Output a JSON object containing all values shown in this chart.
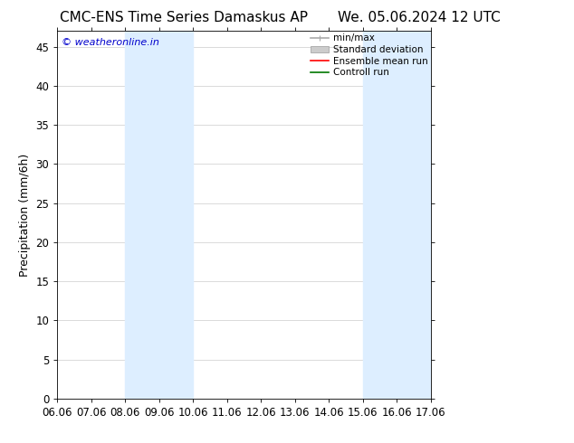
{
  "title_left": "CMC-ENS Time Series Damaskus AP",
  "title_right": "We. 05.06.2024 12 UTC",
  "ylabel": "Precipitation (mm/6h)",
  "watermark": "© weatheronline.in",
  "watermark_color": "#0000cc",
  "xtick_labels": [
    "06.06",
    "07.06",
    "08.06",
    "09.06",
    "10.06",
    "11.06",
    "12.06",
    "13.06",
    "14.06",
    "15.06",
    "16.06",
    "17.06"
  ],
  "xtick_positions": [
    0,
    1,
    2,
    3,
    4,
    5,
    6,
    7,
    8,
    9,
    10,
    11
  ],
  "ylim": [
    0,
    47
  ],
  "ytick_positions": [
    0,
    5,
    10,
    15,
    20,
    25,
    30,
    35,
    40,
    45
  ],
  "ytick_labels": [
    "0",
    "5",
    "10",
    "15",
    "20",
    "25",
    "30",
    "35",
    "40",
    "45"
  ],
  "shaded_bands": [
    {
      "x_start": 2,
      "x_end": 3,
      "color": "#ddeeff"
    },
    {
      "x_start": 3,
      "x_end": 4,
      "color": "#ddeeff"
    },
    {
      "x_start": 9,
      "x_end": 10,
      "color": "#ddeeff"
    },
    {
      "x_start": 10,
      "x_end": 11,
      "color": "#ddeeff"
    }
  ],
  "legend_entries": [
    {
      "label": "min/max",
      "color": "#aaaaaa",
      "lw": 1.2,
      "style": "minmax"
    },
    {
      "label": "Standard deviation",
      "color": "#cccccc",
      "lw": 5,
      "style": "band"
    },
    {
      "label": "Ensemble mean run",
      "color": "#ff0000",
      "lw": 1.2,
      "style": "line"
    },
    {
      "label": "Controll run",
      "color": "#007700",
      "lw": 1.2,
      "style": "line"
    }
  ],
  "background_color": "#ffffff",
  "plot_bg_color": "#ffffff",
  "grid_color": "#cccccc",
  "border_color": "#000000",
  "title_fontsize": 11,
  "axis_fontsize": 9,
  "tick_fontsize": 8.5,
  "legend_fontsize": 7.5
}
